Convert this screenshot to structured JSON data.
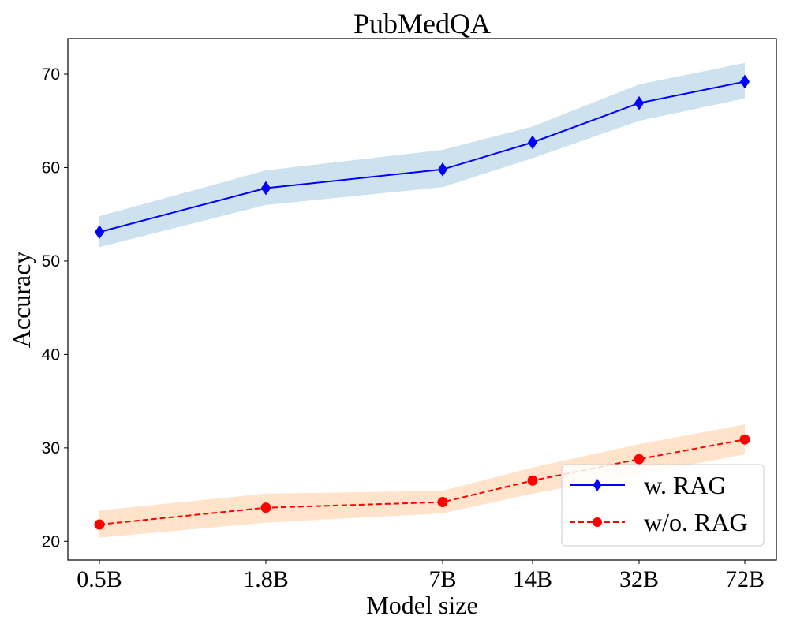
{
  "chart_data": {
    "type": "line",
    "title": "PubMedQA",
    "xlabel": "Model size",
    "ylabel": "Accuracy",
    "categories": [
      "0.5B",
      "1.8B",
      "7B",
      "14B",
      "32B",
      "72B"
    ],
    "yticks": [
      20,
      30,
      40,
      50,
      60,
      70
    ],
    "ylim": [
      18,
      73.8
    ],
    "legend_position": "lower-right",
    "series": [
      {
        "name": "w. RAG",
        "values": [
          53.1,
          57.8,
          59.8,
          62.7,
          66.9,
          69.2
        ],
        "band_lower": [
          51.5,
          56.0,
          57.9,
          61.0,
          65.0,
          67.4
        ],
        "band_upper": [
          54.8,
          59.7,
          61.9,
          64.4,
          68.9,
          71.2
        ],
        "line_color": "#0000ff",
        "band_color": "#1f77b4",
        "marker": "diamond",
        "linestyle": "solid"
      },
      {
        "name": "w/o. RAG",
        "values": [
          21.8,
          23.6,
          24.2,
          26.5,
          28.8,
          30.9
        ],
        "band_lower": [
          20.4,
          22.0,
          23.0,
          25.1,
          27.2,
          29.3
        ],
        "band_upper": [
          23.3,
          25.1,
          25.4,
          27.9,
          30.4,
          32.5
        ],
        "line_color": "#ff0000",
        "band_color": "#ff7f0e",
        "marker": "circle",
        "linestyle": "dashed"
      }
    ]
  }
}
